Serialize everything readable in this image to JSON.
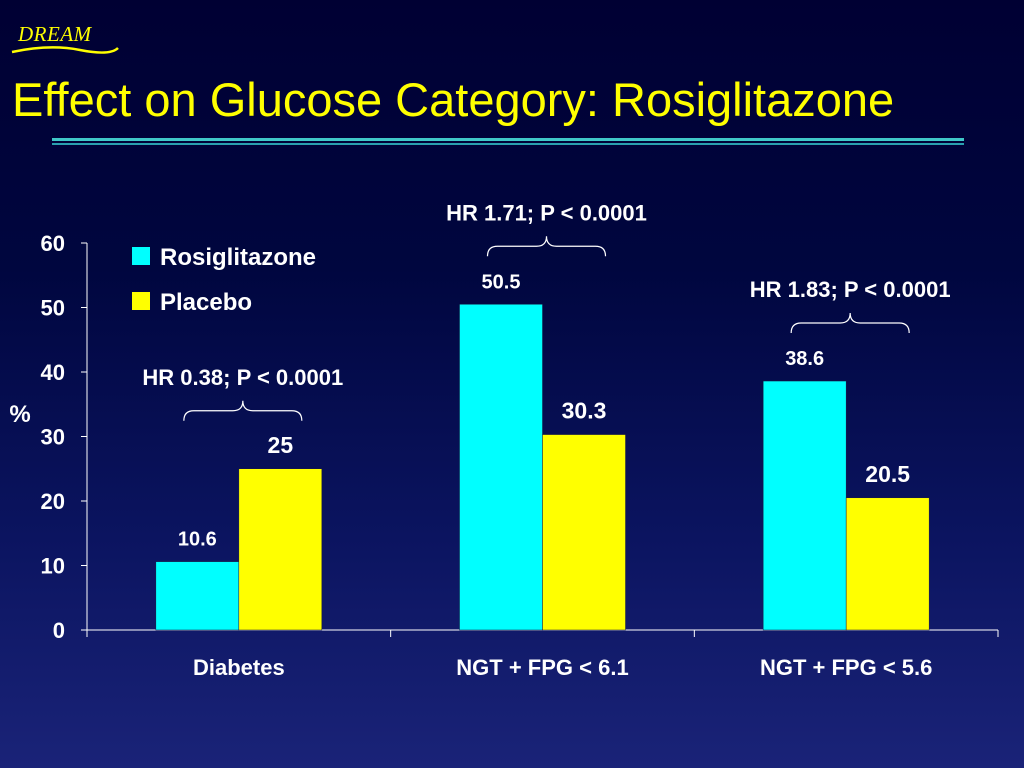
{
  "header": {
    "logo_text": "DREAM",
    "title": "Effect on Glucose Category: Rosiglitazone"
  },
  "colors": {
    "title": "#ffff00",
    "rosiglitazone": "#00ffff",
    "placebo": "#ffff00",
    "text": "#ffffff",
    "rule": "#40c8c8"
  },
  "chart_data": {
    "type": "bar",
    "categories": [
      "Diabetes",
      "NGT + FPG < 6.1",
      "NGT + FPG < 5.6"
    ],
    "series": [
      {
        "name": "Rosiglitazone",
        "values": [
          10.6,
          50.5,
          38.6
        ],
        "labels": [
          "10.6",
          "50.5",
          "38.6"
        ]
      },
      {
        "name": "Placebo",
        "values": [
          25,
          30.3,
          20.5
        ],
        "labels": [
          "25",
          "30.3",
          "20.5"
        ]
      }
    ],
    "ylabel": "%",
    "ylim": [
      0,
      60
    ],
    "yticks": [
      0,
      10,
      20,
      30,
      40,
      50,
      60
    ],
    "legend_position": "top-left",
    "grid": false,
    "annotations": [
      {
        "category": "Diabetes",
        "text": "HR 0.38; P < 0.0001"
      },
      {
        "category": "NGT + FPG < 6.1",
        "text": "HR 1.71; P < 0.0001"
      },
      {
        "category": "NGT + FPG < 5.6",
        "text": "HR 1.83; P < 0.0001"
      }
    ]
  }
}
